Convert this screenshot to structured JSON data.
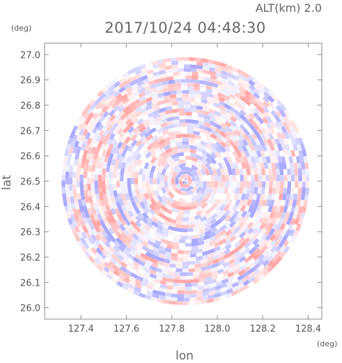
{
  "chart_data": {
    "type": "heatmap",
    "projection": "polar radar scan (PPI) on lon/lat grid",
    "title": "2017/10/24 04:48:30",
    "subtitle": "ALT(km) 2.0",
    "xlabel": "lon",
    "ylabel": "lat",
    "xunit": "(deg)",
    "yunit": "(deg)",
    "xlim": [
      127.24,
      128.46
    ],
    "ylim": [
      25.955,
      27.045
    ],
    "xticks": [
      127.4,
      127.6,
      127.8,
      128.0,
      128.2,
      128.4
    ],
    "xtick_labels": [
      "127.4",
      "127.6",
      "127.8",
      "128.0",
      "128.2",
      "128.4"
    ],
    "yticks": [
      26.0,
      26.1,
      26.2,
      26.3,
      26.4,
      26.5,
      26.6,
      26.7,
      26.8,
      26.9,
      27.0
    ],
    "ytick_labels": [
      "26.0",
      "26.1",
      "26.2",
      "26.3",
      "26.4",
      "26.5",
      "26.6",
      "26.7",
      "26.8",
      "26.9",
      "27.0"
    ],
    "center": {
      "lon": 127.86,
      "lat": 26.5
    },
    "radius_deg_lat": 0.49,
    "value_range": [
      -1,
      1
    ],
    "grid": false,
    "colors": {
      "positive": "#ff9a9a",
      "negative": "#9a9aff",
      "neutral": "#ffffff",
      "frame": "#888888"
    }
  }
}
